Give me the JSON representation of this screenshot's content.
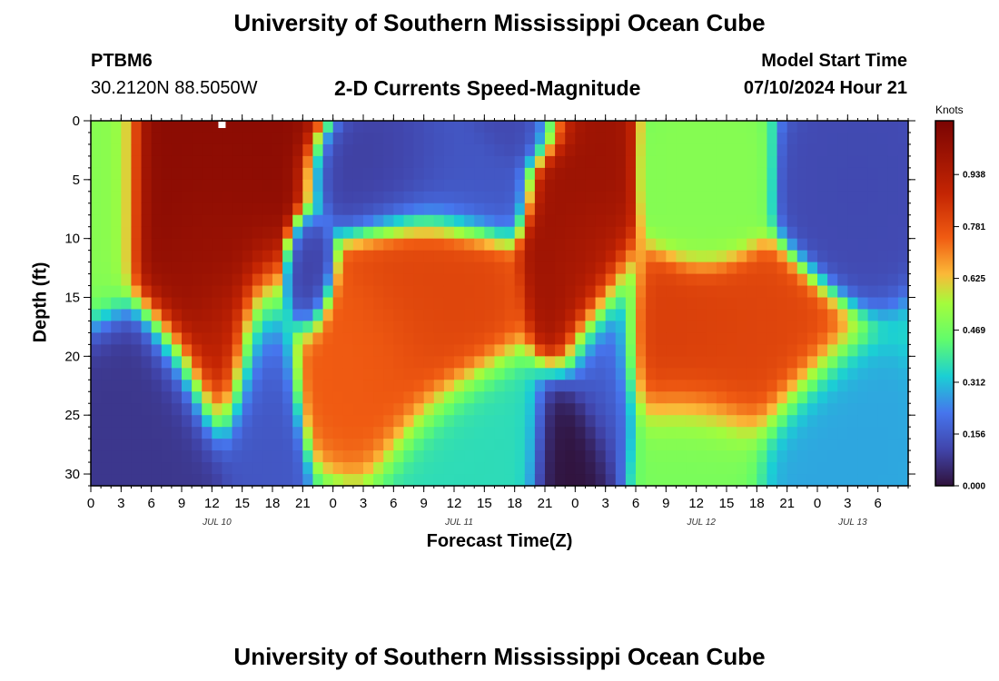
{
  "header": {
    "title": "University of Southern Mississippi Ocean Cube",
    "station_id": "PTBM6",
    "coordinates": "30.2120N  88.5050W",
    "subtitle": "2-D Currents Speed-Magnitude",
    "model_label": "Model Start Time",
    "model_value": "07/10/2024 Hour 21"
  },
  "footer": {
    "title": "University of Southern Mississippi Ocean Cube"
  },
  "chart_data": {
    "type": "heatmap",
    "title": "2-D Currents Speed-Magnitude",
    "xlabel": "Forecast Time(Z)",
    "ylabel": "Depth (ft)",
    "x_range_hours": [
      0,
      81
    ],
    "x_ticks": [
      {
        "h": 0,
        "label": "0"
      },
      {
        "h": 3,
        "label": "3"
      },
      {
        "h": 6,
        "label": "6"
      },
      {
        "h": 9,
        "label": "9"
      },
      {
        "h": 12,
        "label": "12"
      },
      {
        "h": 15,
        "label": "15"
      },
      {
        "h": 18,
        "label": "18"
      },
      {
        "h": 21,
        "label": "21"
      },
      {
        "h": 24,
        "label": "0"
      },
      {
        "h": 27,
        "label": "3"
      },
      {
        "h": 30,
        "label": "6"
      },
      {
        "h": 33,
        "label": "9"
      },
      {
        "h": 36,
        "label": "12"
      },
      {
        "h": 39,
        "label": "15"
      },
      {
        "h": 42,
        "label": "18"
      },
      {
        "h": 45,
        "label": "21"
      },
      {
        "h": 48,
        "label": "0"
      },
      {
        "h": 51,
        "label": "3"
      },
      {
        "h": 54,
        "label": "6"
      },
      {
        "h": 57,
        "label": "9"
      },
      {
        "h": 60,
        "label": "12"
      },
      {
        "h": 63,
        "label": "15"
      },
      {
        "h": 66,
        "label": "18"
      },
      {
        "h": 69,
        "label": "21"
      },
      {
        "h": 72,
        "label": "0"
      },
      {
        "h": 75,
        "label": "3"
      },
      {
        "h": 78,
        "label": "6"
      }
    ],
    "date_labels": [
      {
        "h": 12.5,
        "label": "JUL 10"
      },
      {
        "h": 36.5,
        "label": "JUL 11"
      },
      {
        "h": 60.5,
        "label": "JUL 12"
      },
      {
        "h": 75.5,
        "label": "JUL 13"
      }
    ],
    "y_range_ft": [
      0,
      31
    ],
    "y_ticks": [
      0,
      5,
      10,
      15,
      20,
      25,
      30
    ],
    "colorbar": {
      "label": "Knots",
      "range": [
        0,
        1.1
      ],
      "ticks": [
        "0.000",
        "0.156",
        "0.312",
        "0.469",
        "0.625",
        "0.781",
        "0.938"
      ]
    },
    "speed_features": [
      {
        "h": 0,
        "depth": 4,
        "speed": 0.5,
        "sh": 2,
        "sd": 5
      },
      {
        "h": 12,
        "depth": 4,
        "speed": 1.05,
        "sh": 3.5,
        "sd": 5
      },
      {
        "h": 12.5,
        "depth": 12,
        "speed": 1.0,
        "sh": 2.5,
        "sd": 5
      },
      {
        "h": 13,
        "depth": 19,
        "speed": 0.9,
        "sh": 1.4,
        "sd": 3
      },
      {
        "h": 4.5,
        "depth": 27,
        "speed": 0.08,
        "sh": 4,
        "sd": 4
      },
      {
        "h": 16.5,
        "depth": 24,
        "speed": 0.15,
        "sh": 1.5,
        "sd": 5
      },
      {
        "h": 21.5,
        "depth": 13,
        "speed": 0.1,
        "sh": 1,
        "sd": 2
      },
      {
        "h": 30,
        "depth": 5,
        "speed": 0.1,
        "sh": 3,
        "sd": 2
      },
      {
        "h": 36,
        "depth": 5,
        "speed": 0.15,
        "sh": 3,
        "sd": 2
      },
      {
        "h": 43,
        "depth": 0.5,
        "speed": 0.12,
        "sh": 2,
        "sd": 1.5
      },
      {
        "h": 28,
        "depth": 20,
        "speed": 0.75,
        "sh": 3,
        "sd": 3
      },
      {
        "h": 33,
        "depth": 16,
        "speed": 0.8,
        "sh": 3,
        "sd": 4
      },
      {
        "h": 38,
        "depth": 28,
        "speed": 0.36,
        "sh": 3,
        "sd": 3
      },
      {
        "h": 48,
        "depth": 5,
        "speed": 1.0,
        "sh": 1.8,
        "sd": 6
      },
      {
        "h": 49,
        "depth": 12,
        "speed": 0.95,
        "sh": 1.5,
        "sd": 3
      },
      {
        "h": 48,
        "depth": 29,
        "speed": 0.0,
        "sh": 1.8,
        "sd": 3
      },
      {
        "h": 51,
        "depth": 22,
        "speed": 0.15,
        "sh": 1.5,
        "sd": 4
      },
      {
        "h": 60,
        "depth": 20,
        "speed": 0.82,
        "sh": 3.5,
        "sd": 3
      },
      {
        "h": 64,
        "depth": 20,
        "speed": 0.8,
        "sh": 3.5,
        "sd": 3
      },
      {
        "h": 61,
        "depth": 5,
        "speed": 0.5,
        "sh": 2,
        "sd": 3
      },
      {
        "h": 60,
        "depth": 28,
        "speed": 0.48,
        "sh": 3,
        "sd": 3
      },
      {
        "h": 76,
        "depth": 5.5,
        "speed": 0.12,
        "sh": 2.5,
        "sd": 3
      },
      {
        "h": 73,
        "depth": 28,
        "speed": 0.28,
        "sh": 3,
        "sd": 3
      }
    ],
    "background_speed": 0.35
  }
}
